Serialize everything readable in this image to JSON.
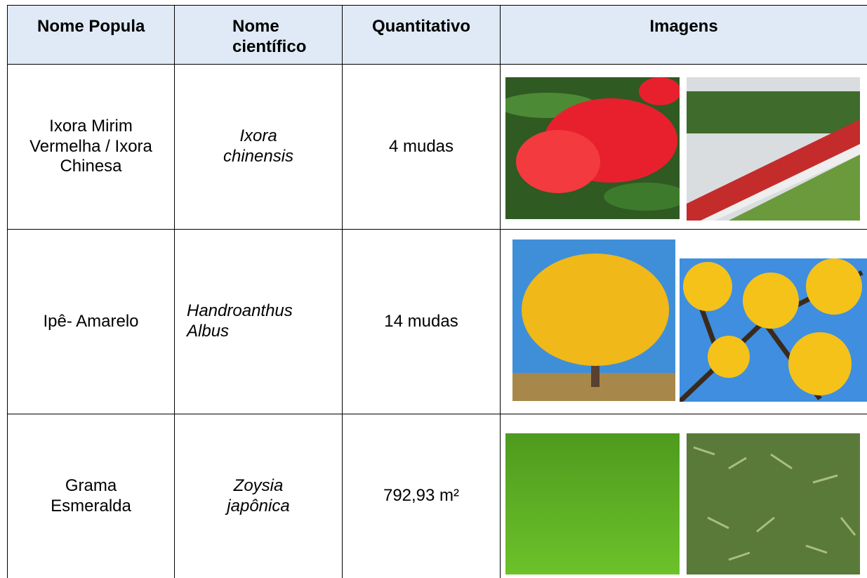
{
  "table": {
    "header": [
      "Nome Popula",
      "Nome científico",
      "Quantitativo",
      "Imagens"
    ],
    "rows": [
      [
        "Ixora Mirim Vermelha / Ixora Chinesa",
        "Ixora chinensis",
        "4 mudas"
      ],
      [
        "Ipê- Amarelo",
        "Handroanthus Albus",
        "14 mudas"
      ],
      [
        "Grama Esmeralda",
        "Zoysia japônica",
        "792,93 m²"
      ]
    ]
  }
}
